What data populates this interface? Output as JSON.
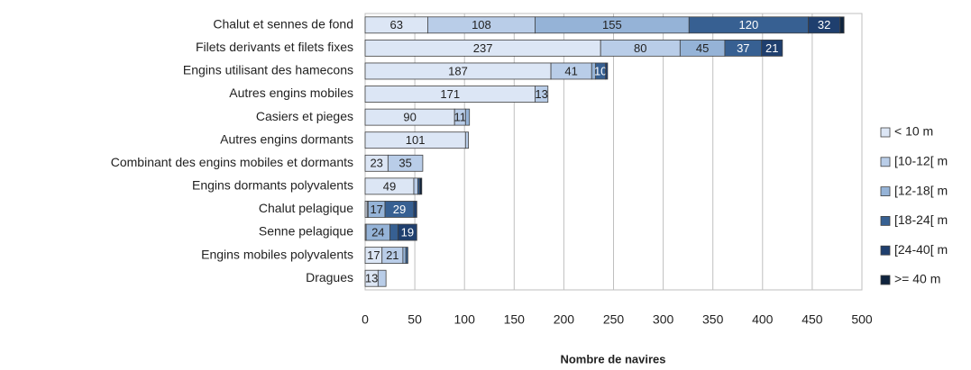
{
  "chart_data": {
    "type": "stacked-barh",
    "xlabel": "Nombre de navires",
    "categories": [
      "Chalut et sennes de fond",
      "Filets derivants et filets fixes",
      "Engins utilisant des hamecons",
      "Autres engins mobiles",
      "Casiers et pieges",
      "Autres engins dormants",
      "Combinant des engins mobiles et dormants",
      "Engins dormants polyvalents",
      "Chalut pelagique",
      "Senne pelagique",
      "Engins mobiles polyvalents",
      "Dragues"
    ],
    "series": [
      {
        "name": "< 10 m",
        "color": "#dce6f5",
        "values": [
          63,
          237,
          187,
          171,
          90,
          101,
          23,
          49,
          2,
          1,
          17,
          13
        ]
      },
      {
        "name": "[10-12[ m",
        "color": "#b9cde8",
        "values": [
          108,
          80,
          41,
          13,
          11,
          3,
          35,
          4,
          1,
          null,
          21,
          8
        ]
      },
      {
        "name": "[12-18[ m",
        "color": "#95b3d7",
        "values": [
          155,
          45,
          4,
          null,
          4,
          null,
          null,
          null,
          17,
          24,
          3,
          null
        ]
      },
      {
        "name": "[18-24[ m",
        "color": "#376092",
        "values": [
          120,
          37,
          10,
          null,
          null,
          null,
          null,
          2,
          29,
          8,
          2,
          null
        ]
      },
      {
        "name": "[24-40[ m",
        "color": "#1f3f6e",
        "values": [
          32,
          21,
          2,
          null,
          null,
          null,
          null,
          null,
          3,
          19,
          null,
          null
        ]
      },
      {
        "name": ">= 40 m",
        "color": "#0f243e",
        "values": [
          4,
          null,
          null,
          null,
          null,
          null,
          null,
          2,
          null,
          null,
          null,
          null
        ]
      }
    ],
    "xlim": [
      0,
      500
    ],
    "xticks": [
      0,
      50,
      100,
      150,
      200,
      250,
      300,
      350,
      400,
      450,
      500
    ],
    "grid": true,
    "legend": "right"
  }
}
